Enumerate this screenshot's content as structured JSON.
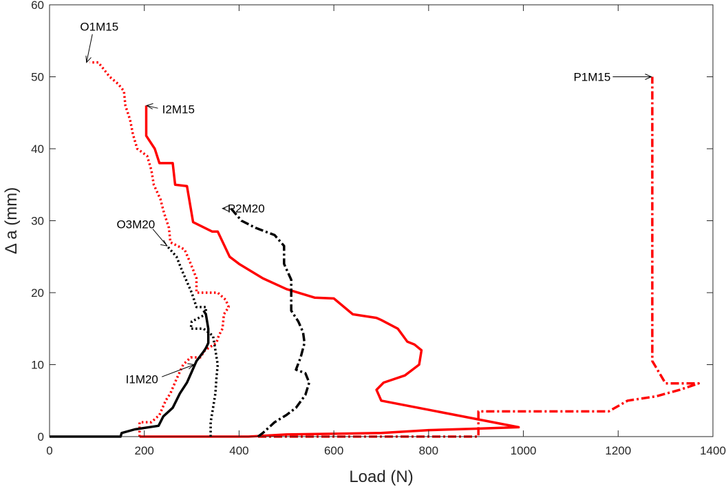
{
  "chart_data": {
    "type": "line",
    "title": "",
    "xlabel": "Load (N)",
    "ylabel": "Δ a (mm)",
    "xlim": [
      0,
      1400
    ],
    "ylim": [
      0,
      60
    ],
    "xticks": [
      0,
      200,
      400,
      600,
      800,
      1000,
      1200,
      1400
    ],
    "yticks": [
      0,
      10,
      20,
      30,
      40,
      50,
      60
    ],
    "grid": false,
    "legend": "none",
    "series": [
      {
        "name": "O1M15",
        "color": "#ff0000",
        "style": "dotted",
        "points": [
          [
            190,
            0
          ],
          [
            190,
            2
          ],
          [
            215,
            2
          ],
          [
            232,
            3
          ],
          [
            245,
            5
          ],
          [
            255,
            6
          ],
          [
            268,
            8
          ],
          [
            282,
            10
          ],
          [
            298,
            11
          ],
          [
            318,
            11
          ],
          [
            328,
            12
          ],
          [
            352,
            13
          ],
          [
            357,
            14
          ],
          [
            365,
            15
          ],
          [
            368,
            17
          ],
          [
            378,
            18
          ],
          [
            372,
            19
          ],
          [
            355,
            20
          ],
          [
            310,
            20
          ],
          [
            310,
            22
          ],
          [
            298,
            24
          ],
          [
            285,
            26
          ],
          [
            255,
            27
          ],
          [
            252,
            29
          ],
          [
            242,
            31
          ],
          [
            234,
            33
          ],
          [
            220,
            35
          ],
          [
            215,
            37
          ],
          [
            206,
            39
          ],
          [
            185,
            40
          ],
          [
            176,
            42
          ],
          [
            170,
            44
          ],
          [
            160,
            46
          ],
          [
            157,
            48
          ],
          [
            145,
            49
          ],
          [
            127,
            50
          ],
          [
            103,
            52
          ],
          [
            85,
            52
          ]
        ]
      },
      {
        "name": "I2M15",
        "color": "#ff0000",
        "style": "solid",
        "points": [
          [
            190,
            0
          ],
          [
            420,
            0
          ],
          [
            500,
            0.3
          ],
          [
            700,
            0.5
          ],
          [
            800,
            0.9
          ],
          [
            900,
            1.1
          ],
          [
            990,
            1.3
          ],
          [
            700,
            5
          ],
          [
            690,
            6.5
          ],
          [
            705,
            7.5
          ],
          [
            750,
            8.5
          ],
          [
            780,
            10
          ],
          [
            785,
            12
          ],
          [
            770,
            12.8
          ],
          [
            755,
            13.2
          ],
          [
            735,
            15
          ],
          [
            700,
            16.2
          ],
          [
            690,
            16.5
          ],
          [
            640,
            17
          ],
          [
            600,
            19.2
          ],
          [
            560,
            19.3
          ],
          [
            500,
            20.5
          ],
          [
            450,
            22
          ],
          [
            400,
            24
          ],
          [
            380,
            25
          ],
          [
            355,
            28.5
          ],
          [
            343,
            28.5
          ],
          [
            303,
            29.8
          ],
          [
            290,
            34.8
          ],
          [
            265,
            35
          ],
          [
            260,
            38
          ],
          [
            232,
            38
          ],
          [
            222,
            40
          ],
          [
            204,
            41.8
          ],
          [
            204,
            46
          ]
        ]
      },
      {
        "name": "P1M15",
        "color": "#ff0000",
        "style": "dashdot",
        "points": [
          [
            440,
            0
          ],
          [
            905,
            0
          ],
          [
            905,
            3.5
          ],
          [
            1180,
            3.5
          ],
          [
            1220,
            5
          ],
          [
            1280,
            5.6
          ],
          [
            1330,
            6.5
          ],
          [
            1370,
            7.4
          ],
          [
            1300,
            7.4
          ],
          [
            1290,
            8.5
          ],
          [
            1272,
            10.5
          ],
          [
            1272,
            50
          ]
        ]
      },
      {
        "name": "O3M20",
        "color": "#000000",
        "style": "dotted",
        "points": [
          [
            340,
            0
          ],
          [
            340,
            2
          ],
          [
            345,
            4
          ],
          [
            350,
            6
          ],
          [
            352,
            8
          ],
          [
            355,
            10
          ],
          [
            350,
            12
          ],
          [
            345,
            14
          ],
          [
            325,
            15
          ],
          [
            298,
            15
          ],
          [
            300,
            16
          ],
          [
            330,
            17
          ],
          [
            330,
            18
          ],
          [
            310,
            18
          ],
          [
            300,
            20
          ],
          [
            280,
            23
          ],
          [
            268,
            25
          ],
          [
            248,
            26.5
          ]
        ]
      },
      {
        "name": "I1M20",
        "color": "#000000",
        "style": "solid",
        "points": [
          [
            0,
            0
          ],
          [
            150,
            0
          ],
          [
            152,
            0.5
          ],
          [
            180,
            1
          ],
          [
            230,
            1.5
          ],
          [
            240,
            2.8
          ],
          [
            260,
            4
          ],
          [
            275,
            6
          ],
          [
            290,
            7.5
          ],
          [
            300,
            9
          ],
          [
            310,
            10.5
          ],
          [
            325,
            11.8
          ],
          [
            330,
            12.3
          ],
          [
            335,
            13
          ],
          [
            335,
            15
          ],
          [
            330,
            17
          ],
          [
            325,
            17.5
          ]
        ]
      },
      {
        "name": "P2M20",
        "color": "#000000",
        "style": "dashdot",
        "points": [
          [
            440,
            0
          ],
          [
            450,
            0.5
          ],
          [
            475,
            2
          ],
          [
            500,
            3
          ],
          [
            520,
            4
          ],
          [
            540,
            5.8
          ],
          [
            548,
            7.5
          ],
          [
            540,
            8.8
          ],
          [
            520,
            9.3
          ],
          [
            530,
            11
          ],
          [
            538,
            13
          ],
          [
            535,
            14.5
          ],
          [
            525,
            16
          ],
          [
            510,
            17.5
          ],
          [
            510,
            20
          ],
          [
            510,
            21.8
          ],
          [
            495,
            24
          ],
          [
            495,
            26.5
          ],
          [
            475,
            28
          ],
          [
            435,
            29
          ],
          [
            405,
            30
          ],
          [
            383,
            31.7
          ]
        ]
      }
    ],
    "annotations": [
      {
        "text": "O1M15",
        "series": "O1M15",
        "tip": [
          78,
          52
        ],
        "text_at": [
          105,
          57
        ]
      },
      {
        "text": "I2M15",
        "series": "I2M15",
        "tip": [
          205,
          46
        ],
        "text_at": [
          272,
          45.5
        ]
      },
      {
        "text": "P1M15",
        "series": "P1M15",
        "tip": [
          1270,
          50
        ],
        "text_at": [
          1145,
          50
        ]
      },
      {
        "text": "P2M20",
        "series": "P2M20",
        "tip": [
          365,
          31.7
        ],
        "text_at": [
          415,
          31.7
        ]
      },
      {
        "text": "O3M20",
        "series": "O3M20",
        "tip": [
          248,
          26.5
        ],
        "text_at": [
          182,
          29.5
        ]
      },
      {
        "text": "I1M20",
        "series": "I1M20",
        "tip": [
          305,
          10
        ],
        "text_at": [
          195,
          8
        ]
      }
    ]
  }
}
